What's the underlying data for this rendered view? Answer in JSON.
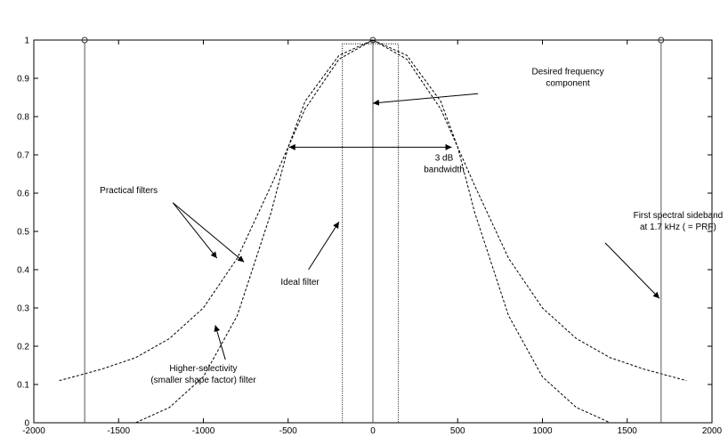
{
  "chart_data": {
    "type": "line",
    "title": "",
    "xlabel": "",
    "ylabel": "",
    "xlim": [
      -2000,
      2000
    ],
    "ylim": [
      0,
      1
    ],
    "xticks": [
      -2000,
      -1500,
      -1000,
      -500,
      0,
      500,
      1000,
      1500,
      2000
    ],
    "yticks": [
      0,
      0.1,
      0.2,
      0.3,
      0.4,
      0.5,
      0.6,
      0.7,
      0.8,
      0.9,
      1
    ],
    "grid": false,
    "legend": "none",
    "series": [
      {
        "style": "dashed",
        "x": [
          -1850,
          -1600,
          -1400,
          -1200,
          -1000,
          -800,
          -600,
          -500,
          -400,
          -200,
          0,
          200,
          400,
          500,
          600,
          800,
          1000,
          1200,
          1400,
          1600,
          1850
        ],
        "y": [
          0.11,
          0.14,
          0.17,
          0.22,
          0.3,
          0.43,
          0.62,
          0.72,
          0.82,
          0.95,
          1.0,
          0.95,
          0.82,
          0.72,
          0.62,
          0.43,
          0.3,
          0.22,
          0.17,
          0.14,
          0.11
        ]
      },
      {
        "style": "dashed",
        "x": [
          -1450,
          -1400,
          -1200,
          -1000,
          -800,
          -600,
          -500,
          -400,
          -200,
          0,
          200,
          400,
          500,
          600,
          800,
          1000,
          1200,
          1400,
          1450
        ],
        "y": [
          0.0,
          0.0,
          0.04,
          0.12,
          0.28,
          0.55,
          0.72,
          0.84,
          0.96,
          1.0,
          0.96,
          0.84,
          0.72,
          0.55,
          0.28,
          0.12,
          0.04,
          0.0,
          0.0
        ]
      },
      {
        "style": "dotted",
        "x": [
          -180,
          -180,
          150,
          150
        ],
        "y": [
          0,
          0.99,
          0.99,
          0
        ]
      }
    ],
    "stems": [
      {
        "x": -1700,
        "y": 1
      },
      {
        "x": 0,
        "y": 1
      },
      {
        "x": 1700,
        "y": 1
      }
    ],
    "bandwidth_arrow": {
      "x1": -500,
      "x2": 470,
      "y": 0.72
    },
    "annotations": [
      {
        "lines": [
          "Desired frequency",
          "component"
        ],
        "text_x": 1150,
        "text_y": 0.91,
        "arrow_from": [
          620,
          0.86
        ],
        "arrow_to": [
          0,
          0.835
        ]
      },
      {
        "lines": [
          "3 dB",
          "bandwidth"
        ],
        "text_x": 420,
        "text_y": 0.685,
        "arrow_from": null,
        "arrow_to": null
      },
      {
        "lines": [
          "Practical filters"
        ],
        "text_x": -1440,
        "text_y": 0.6,
        "arrow_from": [
          -1180,
          0.575
        ],
        "arrow_to": [
          -920,
          0.43
        ],
        "arrow2_to": [
          -760,
          0.42
        ]
      },
      {
        "lines": [
          "First spectral sideband",
          "at 1.7 kHz ( = PRF)"
        ],
        "text_x": 1800,
        "text_y": 0.535,
        "arrow_from": [
          1370,
          0.47
        ],
        "arrow_to": [
          1690,
          0.325
        ]
      },
      {
        "lines": [
          "Ideal filter"
        ],
        "text_x": -430,
        "text_y": 0.36,
        "arrow_from": [
          -380,
          0.4
        ],
        "arrow_to": [
          -200,
          0.525
        ]
      },
      {
        "lines": [
          "Higher-selectivity",
          "(smaller shape factor) filter"
        ],
        "text_x": -1000,
        "text_y": 0.135,
        "arrow_from": [
          -870,
          0.165
        ],
        "arrow_to": [
          -930,
          0.255
        ]
      }
    ]
  }
}
